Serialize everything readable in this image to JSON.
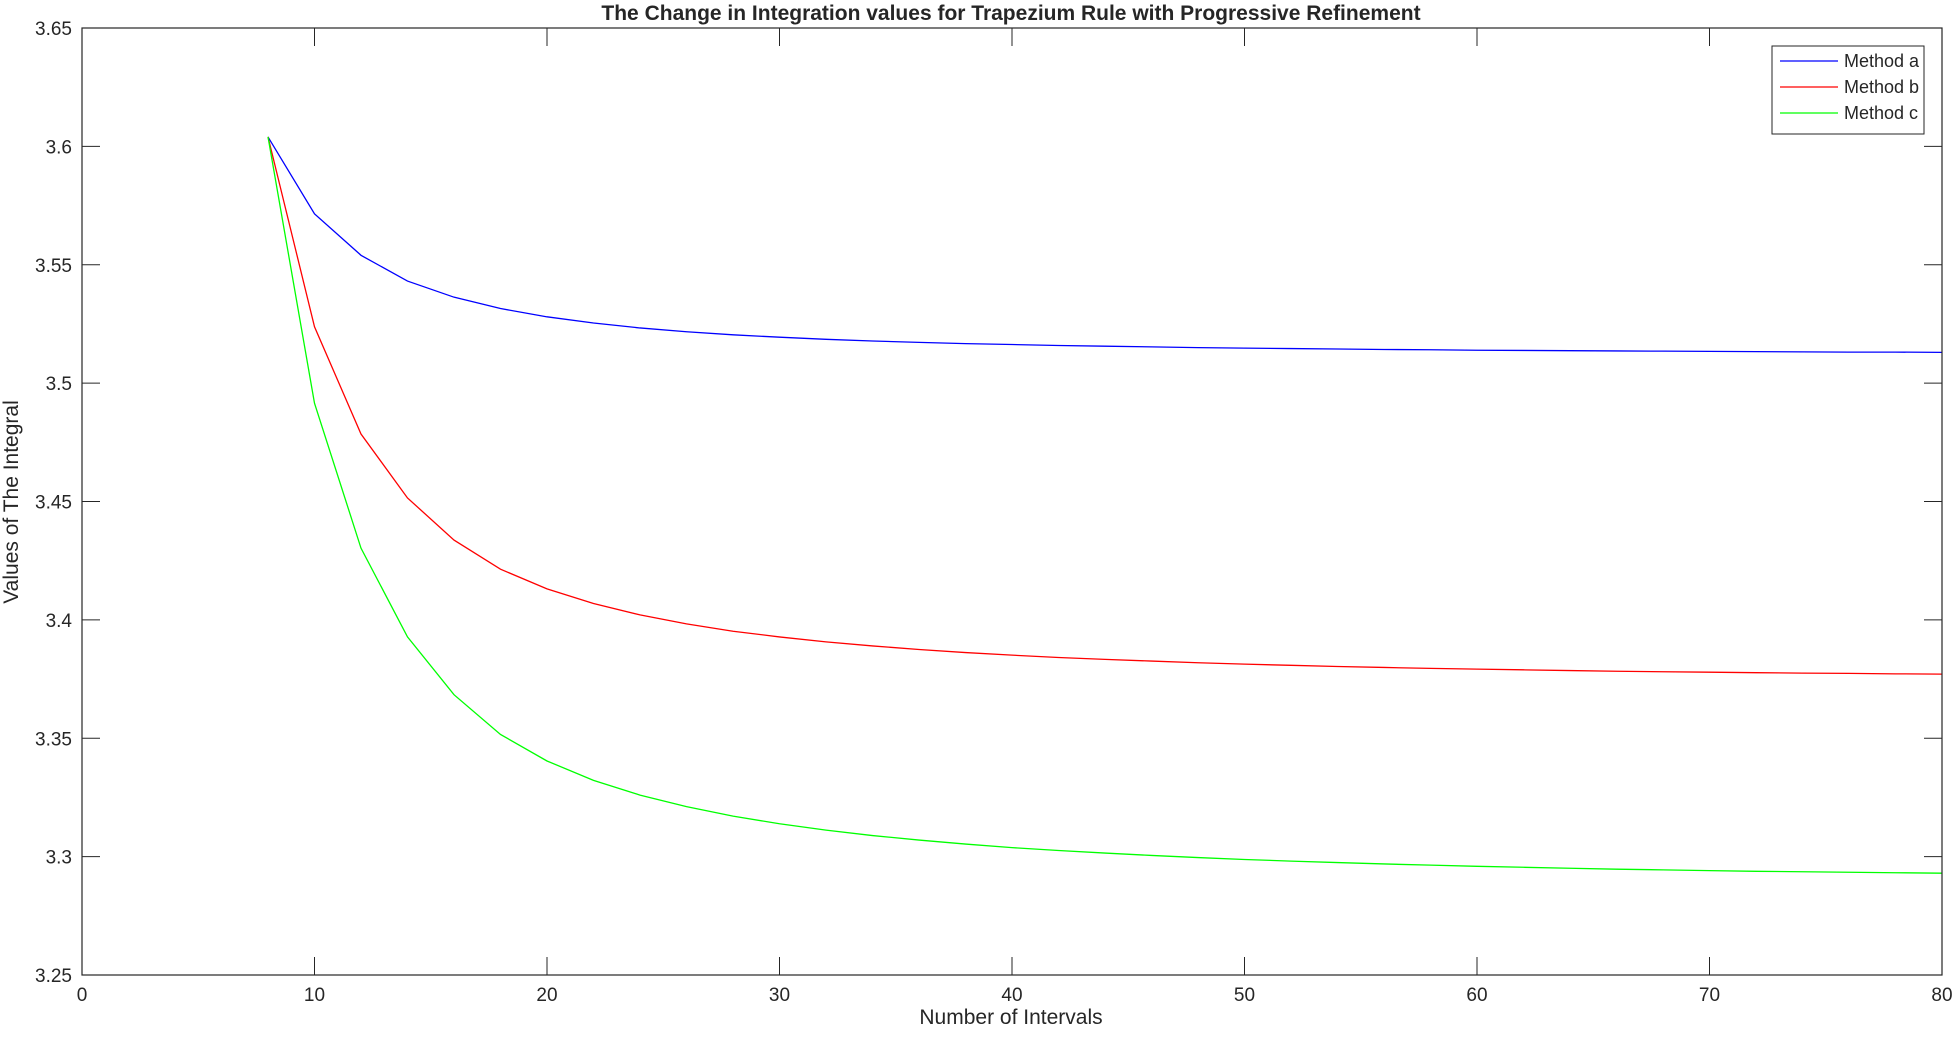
{
  "chart_data": {
    "type": "line",
    "title": "The Change in Integration values for Trapezium Rule with Progressive Refinement",
    "xlabel": "Number of Intervals",
    "ylabel": "Values of The Integral",
    "xlim": [
      0,
      80
    ],
    "ylim": [
      3.25,
      3.65
    ],
    "xticks": [
      "0",
      "10",
      "20",
      "30",
      "40",
      "50",
      "60",
      "70",
      "80"
    ],
    "yticks": [
      "3.25",
      "3.3",
      "3.35",
      "3.4",
      "3.45",
      "3.5",
      "3.55",
      "3.6",
      "3.65"
    ],
    "grid": false,
    "legend_position": "top-right",
    "x": [
      8,
      10,
      12,
      14,
      16,
      18,
      20,
      22,
      24,
      26,
      28,
      30,
      32,
      34,
      36,
      38,
      40,
      42,
      44,
      46,
      48,
      50,
      52,
      54,
      56,
      58,
      60,
      62,
      64,
      66,
      68,
      70,
      72,
      74,
      76,
      78,
      80
    ],
    "series": [
      {
        "name": "Method a",
        "color": "#0000ff",
        "values": [
          3.604,
          3.5715,
          3.554,
          3.5431,
          3.5363,
          3.5315,
          3.528,
          3.5254,
          3.5233,
          3.5217,
          3.5204,
          3.5194,
          3.5185,
          3.5178,
          3.5172,
          3.5167,
          3.5163,
          3.5159,
          3.5156,
          3.5153,
          3.515,
          3.5148,
          3.5146,
          3.5144,
          3.5142,
          3.5141,
          3.5139,
          3.5138,
          3.5137,
          3.5136,
          3.5135,
          3.5134,
          3.5133,
          3.5132,
          3.5131,
          3.5131,
          3.513
        ]
      },
      {
        "name": "Method b",
        "color": "#ff0000",
        "values": [
          3.604,
          3.5238,
          3.4785,
          3.4515,
          3.4337,
          3.4214,
          3.4131,
          3.4069,
          3.4021,
          3.3983,
          3.3952,
          3.3928,
          3.3907,
          3.389,
          3.3875,
          3.3862,
          3.3851,
          3.3841,
          3.3833,
          3.3826,
          3.3819,
          3.3813,
          3.3808,
          3.3803,
          3.3799,
          3.3795,
          3.3792,
          3.3789,
          3.3786,
          3.3783,
          3.3781,
          3.3779,
          3.3777,
          3.3775,
          3.3774,
          3.3772,
          3.3771
        ]
      },
      {
        "name": "Method c",
        "color": "#00ff00",
        "values": [
          3.604,
          3.4915,
          3.4303,
          3.3928,
          3.3684,
          3.3516,
          3.3404,
          3.3322,
          3.326,
          3.3211,
          3.3171,
          3.3139,
          3.3112,
          3.3089,
          3.307,
          3.3053,
          3.3038,
          3.3026,
          3.3015,
          3.3005,
          3.2996,
          3.2988,
          3.2981,
          3.2975,
          3.2969,
          3.2964,
          3.2959,
          3.2955,
          3.2951,
          3.2947,
          3.2944,
          3.2941,
          3.2938,
          3.2936,
          3.2934,
          3.2932,
          3.293
        ]
      }
    ]
  }
}
